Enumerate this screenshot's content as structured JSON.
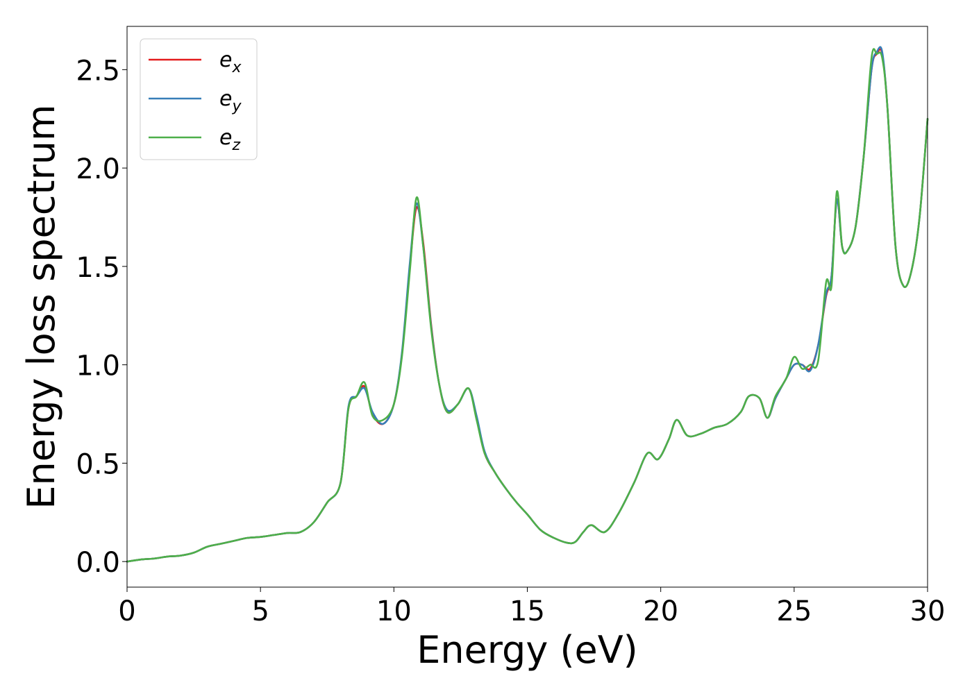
{
  "chart_data": {
    "type": "line",
    "title": "",
    "xlabel": "Energy (eV)",
    "ylabel": "Energy loss spectrum",
    "xlim": [
      0,
      30
    ],
    "ylim": [
      -0.13,
      2.72
    ],
    "xticks": [
      0,
      5,
      10,
      15,
      20,
      25,
      30
    ],
    "xtick_labels": [
      "0",
      "5",
      "10",
      "15",
      "20",
      "25",
      "30"
    ],
    "yticks": [
      0.0,
      0.5,
      1.0,
      1.5,
      2.0,
      2.5
    ],
    "ytick_labels": [
      "0.0",
      "0.5",
      "1.0",
      "1.5",
      "2.0",
      "2.5"
    ],
    "grid": false,
    "legend_position": "top-left",
    "x": [
      0,
      0.5,
      1,
      1.5,
      2,
      2.5,
      3,
      3.5,
      4,
      4.5,
      5,
      5.5,
      6,
      6.5,
      7,
      7.5,
      8,
      8.3,
      8.6,
      8.9,
      9.2,
      9.6,
      10,
      10.3,
      10.6,
      10.85,
      11.1,
      11.4,
      11.7,
      12,
      12.4,
      12.8,
      13.1,
      13.4,
      13.8,
      14.2,
      14.6,
      15,
      15.5,
      16,
      16.5,
      16.8,
      17.1,
      17.4,
      17.9,
      18.4,
      19,
      19.5,
      19.9,
      20.3,
      20.6,
      21,
      21.5,
      22,
      22.5,
      23,
      23.3,
      23.7,
      24,
      24.3,
      24.7,
      25,
      25.3,
      25.6,
      25.9,
      26.2,
      26.4,
      26.6,
      26.8,
      27,
      27.3,
      27.6,
      27.9,
      28.1,
      28.3,
      28.5,
      28.8,
      29.1,
      29.4,
      29.7,
      30
    ],
    "series": [
      {
        "name": "e_x",
        "color": "#e41a1c",
        "values": [
          0,
          0.01,
          0.015,
          0.025,
          0.03,
          0.045,
          0.075,
          0.09,
          0.105,
          0.12,
          0.125,
          0.135,
          0.145,
          0.15,
          0.2,
          0.3,
          0.4,
          0.78,
          0.84,
          0.89,
          0.75,
          0.7,
          0.8,
          1.05,
          1.5,
          1.8,
          1.62,
          1.2,
          0.9,
          0.76,
          0.8,
          0.88,
          0.73,
          0.55,
          0.45,
          0.37,
          0.3,
          0.24,
          0.16,
          0.12,
          0.095,
          0.1,
          0.15,
          0.185,
          0.15,
          0.24,
          0.4,
          0.55,
          0.52,
          0.62,
          0.72,
          0.64,
          0.65,
          0.68,
          0.7,
          0.76,
          0.84,
          0.83,
          0.73,
          0.83,
          0.93,
          1.0,
          1.0,
          0.98,
          1.1,
          1.35,
          1.45,
          1.84,
          1.6,
          1.58,
          1.7,
          2.05,
          2.5,
          2.58,
          2.58,
          2.3,
          1.6,
          1.4,
          1.48,
          1.75,
          2.25
        ]
      },
      {
        "name": "e_y",
        "color": "#377eb8",
        "values": [
          0,
          0.01,
          0.015,
          0.025,
          0.03,
          0.045,
          0.075,
          0.09,
          0.105,
          0.12,
          0.125,
          0.135,
          0.145,
          0.15,
          0.2,
          0.3,
          0.4,
          0.79,
          0.84,
          0.88,
          0.76,
          0.7,
          0.8,
          1.06,
          1.52,
          1.82,
          1.6,
          1.19,
          0.9,
          0.77,
          0.8,
          0.88,
          0.74,
          0.56,
          0.45,
          0.37,
          0.3,
          0.24,
          0.16,
          0.12,
          0.095,
          0.1,
          0.15,
          0.185,
          0.15,
          0.24,
          0.4,
          0.55,
          0.52,
          0.62,
          0.72,
          0.64,
          0.65,
          0.68,
          0.7,
          0.76,
          0.84,
          0.83,
          0.73,
          0.83,
          0.93,
          1.0,
          1.0,
          0.97,
          1.1,
          1.36,
          1.45,
          1.84,
          1.6,
          1.58,
          1.7,
          2.05,
          2.5,
          2.59,
          2.59,
          2.3,
          1.6,
          1.4,
          1.48,
          1.75,
          2.25
        ]
      },
      {
        "name": "e_z",
        "color": "#4daf4a",
        "values": [
          0,
          0.01,
          0.015,
          0.025,
          0.03,
          0.045,
          0.075,
          0.09,
          0.105,
          0.12,
          0.125,
          0.135,
          0.145,
          0.15,
          0.2,
          0.3,
          0.4,
          0.78,
          0.84,
          0.91,
          0.74,
          0.72,
          0.8,
          1.04,
          1.48,
          1.85,
          1.6,
          1.18,
          0.9,
          0.76,
          0.8,
          0.88,
          0.72,
          0.55,
          0.45,
          0.37,
          0.3,
          0.24,
          0.16,
          0.12,
          0.095,
          0.1,
          0.15,
          0.185,
          0.15,
          0.24,
          0.4,
          0.55,
          0.52,
          0.62,
          0.72,
          0.64,
          0.65,
          0.68,
          0.7,
          0.76,
          0.84,
          0.83,
          0.73,
          0.84,
          0.93,
          1.04,
          0.98,
          1.0,
          1.02,
          1.42,
          1.4,
          1.88,
          1.6,
          1.58,
          1.7,
          2.05,
          2.56,
          2.58,
          2.56,
          2.3,
          1.6,
          1.4,
          1.48,
          1.75,
          2.25
        ]
      }
    ],
    "legend": [
      {
        "base": "e",
        "sub": "x",
        "color": "#e41a1c"
      },
      {
        "base": "e",
        "sub": "y",
        "color": "#377eb8"
      },
      {
        "base": "e",
        "sub": "z",
        "color": "#4daf4a"
      }
    ]
  }
}
